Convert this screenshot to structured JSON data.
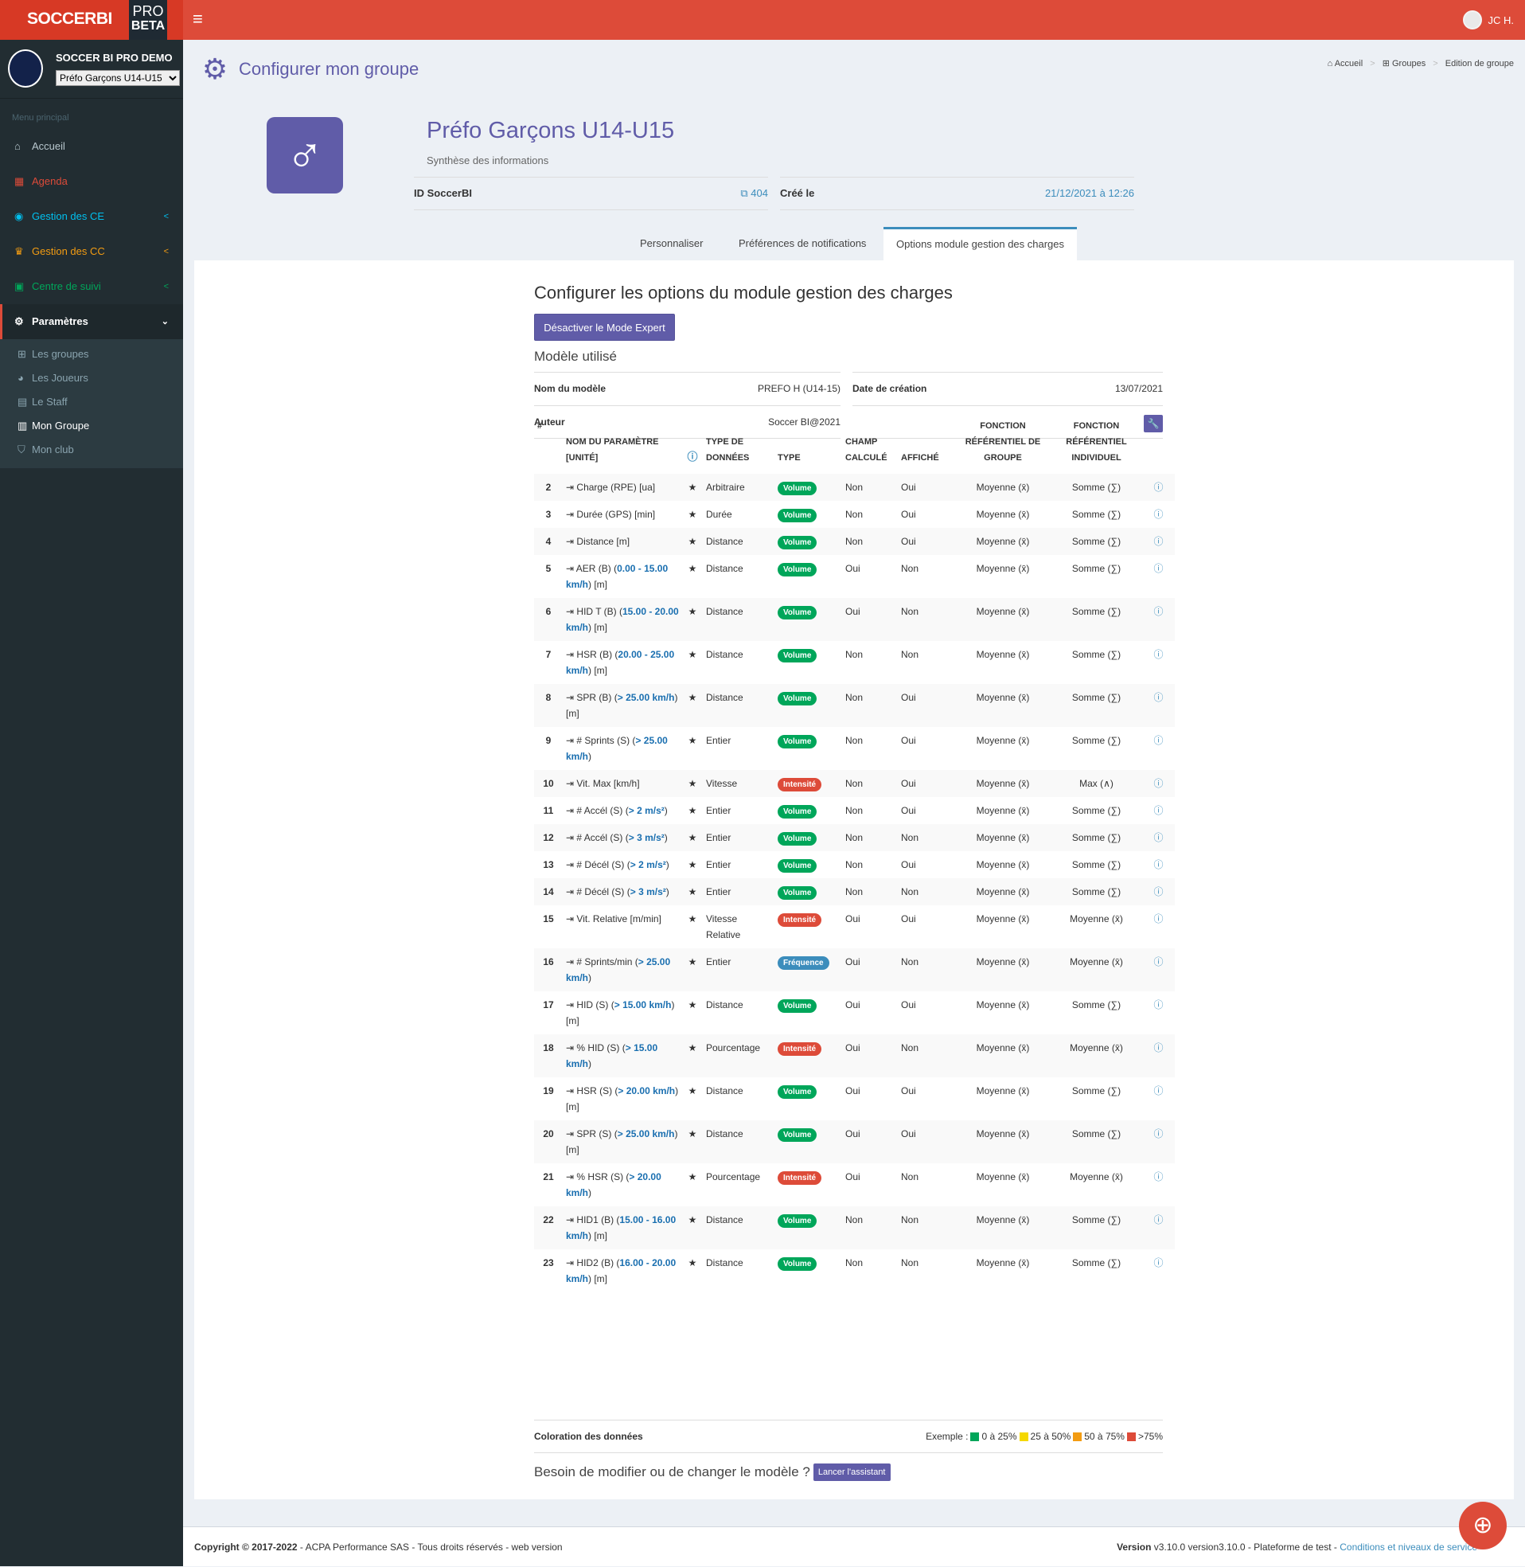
{
  "brand": {
    "name": "SOCCERBI",
    "pro": "PRO",
    "beta": "BETA"
  },
  "user": {
    "name": "JC H."
  },
  "club": {
    "name": "SOCCER BI PRO DEMO",
    "group_selected": "Préfo Garçons U14-U15"
  },
  "sidebar": {
    "header": "Menu principal",
    "items": [
      {
        "label": "Accueil",
        "icon": "home-icon",
        "color": "#b8c7ce"
      },
      {
        "label": "Agenda",
        "icon": "calendar-icon",
        "color": "#dd4b39"
      },
      {
        "label": "Gestion des CE",
        "icon": "soccer-ball-icon",
        "color": "#00c0ef"
      },
      {
        "label": "Gestion des CC",
        "icon": "trophy-icon",
        "color": "#f39c12"
      },
      {
        "label": "Centre de suivi",
        "icon": "monitor-icon",
        "color": "#00a65a"
      },
      {
        "label": "Paramètres",
        "icon": "gear-icon",
        "color": "#ffffff"
      }
    ],
    "sub": [
      {
        "label": "Les groupes",
        "icon": "sitemap-icon"
      },
      {
        "label": "Les Joueurs",
        "icon": "user-icon"
      },
      {
        "label": "Le Staff",
        "icon": "id-card-icon"
      },
      {
        "label": "Mon Groupe",
        "icon": "group-doc-icon"
      },
      {
        "label": "Mon club",
        "icon": "shield-icon"
      }
    ]
  },
  "page": {
    "title": "Configurer mon groupe",
    "breadcrumb": [
      "Accueil",
      "Groupes",
      "Edition de groupe"
    ]
  },
  "group": {
    "name": "Préfo Garçons U14-U15",
    "subtitle": "Synthèse des informations",
    "id_label": "ID SoccerBI",
    "id_value": "404",
    "created_label": "Créé le",
    "created_value": "21/12/2021 à 12:26"
  },
  "tabs": [
    "Personnaliser",
    "Préférences de notifications",
    "Options module gestion des charges"
  ],
  "module": {
    "title": "Configurer les options du module gestion des charges",
    "expert_button": "Désactiver le Mode Expert",
    "model_header": "Modèle utilisé",
    "model_name_label": "Nom du modèle",
    "model_name": "PREFO H (U14-15)",
    "date_label": "Date de création",
    "date": "13/07/2021",
    "author_label": "Auteur",
    "author": "Soccer BI@2021"
  },
  "table": {
    "headers": {
      "num": "#",
      "name": "NOM DU PARAMÈTRE [UNITÉ]",
      "dtype": "TYPE DE DONNÉES",
      "type": "TYPE",
      "calc": "CHAMP CALCULÉ",
      "shown": "AFFICHÉ",
      "fgroup": "FONCTION RÉFÉRENTIEL DE GROUPE",
      "find": "FONCTION RÉFÉRENTIEL INDIVIDUEL"
    },
    "rows": [
      {
        "n": "2",
        "pre": "Charge (RPE) [ua]",
        "hl": "",
        "post": "",
        "dtype": "Arbitraire",
        "type": "Volume",
        "calc": "Non",
        "shown": "Oui",
        "fg": "Moyenne (x̄)",
        "fi": "Somme (∑)"
      },
      {
        "n": "3",
        "pre": "Durée (GPS) [min]",
        "hl": "",
        "post": "",
        "dtype": "Durée",
        "type": "Volume",
        "calc": "Non",
        "shown": "Oui",
        "fg": "Moyenne (x̄)",
        "fi": "Somme (∑)"
      },
      {
        "n": "4",
        "pre": "Distance [m]",
        "hl": "",
        "post": "",
        "dtype": "Distance",
        "type": "Volume",
        "calc": "Non",
        "shown": "Oui",
        "fg": "Moyenne (x̄)",
        "fi": "Somme (∑)"
      },
      {
        "n": "5",
        "pre": "AER (B) (",
        "hl": "0.00 - 15.00 km/h",
        "post": ") [m]",
        "dtype": "Distance",
        "type": "Volume",
        "calc": "Oui",
        "shown": "Non",
        "fg": "Moyenne (x̄)",
        "fi": "Somme (∑)"
      },
      {
        "n": "6",
        "pre": "HID T (B) (",
        "hl": "15.00 - 20.00 km/h",
        "post": ") [m]",
        "dtype": "Distance",
        "type": "Volume",
        "calc": "Oui",
        "shown": "Non",
        "fg": "Moyenne (x̄)",
        "fi": "Somme (∑)"
      },
      {
        "n": "7",
        "pre": "HSR (B) (",
        "hl": "20.00 - 25.00 km/h",
        "post": ") [m]",
        "dtype": "Distance",
        "type": "Volume",
        "calc": "Non",
        "shown": "Non",
        "fg": "Moyenne (x̄)",
        "fi": "Somme (∑)"
      },
      {
        "n": "8",
        "pre": "SPR (B) (",
        "hl": "> 25.00 km/h",
        "post": ") [m]",
        "dtype": "Distance",
        "type": "Volume",
        "calc": "Non",
        "shown": "Oui",
        "fg": "Moyenne (x̄)",
        "fi": "Somme (∑)"
      },
      {
        "n": "9",
        "pre": "# Sprints (S) (",
        "hl": "> 25.00 km/h",
        "post": ")",
        "dtype": "Entier",
        "type": "Volume",
        "calc": "Non",
        "shown": "Oui",
        "fg": "Moyenne (x̄)",
        "fi": "Somme (∑)"
      },
      {
        "n": "10",
        "pre": "Vit. Max [km/h]",
        "hl": "",
        "post": "",
        "dtype": "Vitesse",
        "type": "Intensité",
        "calc": "Non",
        "shown": "Oui",
        "fg": "Moyenne (x̄)",
        "fi": "Max (∧)"
      },
      {
        "n": "11",
        "pre": "# Accél (S) (",
        "hl": "> 2 m/s²",
        "post": ")",
        "dtype": "Entier",
        "type": "Volume",
        "calc": "Non",
        "shown": "Oui",
        "fg": "Moyenne (x̄)",
        "fi": "Somme (∑)"
      },
      {
        "n": "12",
        "pre": "# Accél (S) (",
        "hl": "> 3 m/s²",
        "post": ")",
        "dtype": "Entier",
        "type": "Volume",
        "calc": "Non",
        "shown": "Non",
        "fg": "Moyenne (x̄)",
        "fi": "Somme (∑)"
      },
      {
        "n": "13",
        "pre": "# Décél (S) (",
        "hl": "> 2 m/s²",
        "post": ")",
        "dtype": "Entier",
        "type": "Volume",
        "calc": "Non",
        "shown": "Oui",
        "fg": "Moyenne (x̄)",
        "fi": "Somme (∑)"
      },
      {
        "n": "14",
        "pre": "# Décél (S) (",
        "hl": "> 3 m/s²",
        "post": ")",
        "dtype": "Entier",
        "type": "Volume",
        "calc": "Non",
        "shown": "Non",
        "fg": "Moyenne (x̄)",
        "fi": "Somme (∑)"
      },
      {
        "n": "15",
        "pre": "Vit. Relative [m/min]",
        "hl": "",
        "post": "",
        "dtype": "Vitesse Relative",
        "type": "Intensité",
        "calc": "Oui",
        "shown": "Oui",
        "fg": "Moyenne (x̄)",
        "fi": "Moyenne (x̄)"
      },
      {
        "n": "16",
        "pre": "# Sprints/min (",
        "hl": "> 25.00 km/h",
        "post": ")",
        "dtype": "Entier",
        "type": "Fréquence",
        "calc": "Oui",
        "shown": "Non",
        "fg": "Moyenne (x̄)",
        "fi": "Moyenne (x̄)"
      },
      {
        "n": "17",
        "pre": "HID (S) (",
        "hl": "> 15.00 km/h",
        "post": ") [m]",
        "dtype": "Distance",
        "type": "Volume",
        "calc": "Oui",
        "shown": "Oui",
        "fg": "Moyenne (x̄)",
        "fi": "Somme (∑)"
      },
      {
        "n": "18",
        "pre": "% HID (S) (",
        "hl": "> 15.00 km/h",
        "post": ")",
        "dtype": "Pourcentage",
        "type": "Intensité",
        "calc": "Oui",
        "shown": "Non",
        "fg": "Moyenne (x̄)",
        "fi": "Moyenne (x̄)"
      },
      {
        "n": "19",
        "pre": "HSR (S) (",
        "hl": "> 20.00 km/h",
        "post": ") [m]",
        "dtype": "Distance",
        "type": "Volume",
        "calc": "Oui",
        "shown": "Oui",
        "fg": "Moyenne (x̄)",
        "fi": "Somme (∑)"
      },
      {
        "n": "20",
        "pre": "SPR (S) (",
        "hl": "> 25.00 km/h",
        "post": ") [m]",
        "dtype": "Distance",
        "type": "Volume",
        "calc": "Oui",
        "shown": "Oui",
        "fg": "Moyenne (x̄)",
        "fi": "Somme (∑)"
      },
      {
        "n": "21",
        "pre": "% HSR (S) (",
        "hl": "> 20.00 km/h",
        "post": ")",
        "dtype": "Pourcentage",
        "type": "Intensité",
        "calc": "Oui",
        "shown": "Non",
        "fg": "Moyenne (x̄)",
        "fi": "Moyenne (x̄)"
      },
      {
        "n": "22",
        "pre": "HID1 (B) (",
        "hl": "15.00 - 16.00 km/h",
        "post": ") [m]",
        "dtype": "Distance",
        "type": "Volume",
        "calc": "Non",
        "shown": "Non",
        "fg": "Moyenne (x̄)",
        "fi": "Somme (∑)"
      },
      {
        "n": "23",
        "pre": "HID2 (B) (",
        "hl": "16.00 - 20.00 km/h",
        "post": ") [m]",
        "dtype": "Distance",
        "type": "Volume",
        "calc": "Non",
        "shown": "Non",
        "fg": "Moyenne (x̄)",
        "fi": "Somme (∑)"
      }
    ]
  },
  "badge_colors": {
    "Volume": "#00a65a",
    "Intensité": "#dd4b39",
    "Fréquence": "#3c8dbc"
  },
  "coloring": {
    "label": "Coloration des données",
    "example": "Exemple :",
    "legend": [
      {
        "label": "0 à 25%",
        "color": "#00a65a"
      },
      {
        "label": "25 à 50%",
        "color": "#f5d800"
      },
      {
        "label": "50 à 75%",
        "color": "#f39c12"
      },
      {
        "label": ">75%",
        "color": "#dd4b39"
      }
    ]
  },
  "assistant": {
    "question": "Besoin de modifier ou de changer le modèle ?",
    "button": "Lancer l'assistant"
  },
  "footer": {
    "copyright": "Copyright © 2017-2022",
    "company": " - ACPA Performance SAS - Tous droits réservés - web version",
    "version_label": "Version",
    "version": " v3.10.0 version3.10.0 - Plateforme de test - ",
    "link": "Conditions et niveaux de service"
  }
}
